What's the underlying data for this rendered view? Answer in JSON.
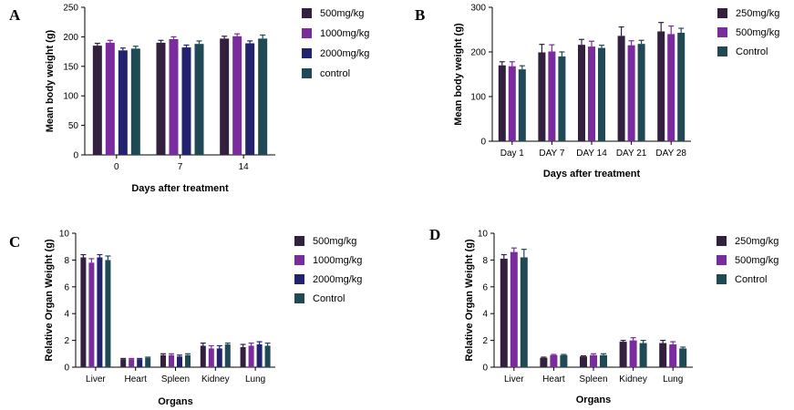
{
  "colors": {
    "dark_purple": "#33203f",
    "violet": "#7a2b9e",
    "navy": "#22226e",
    "teal": "#1f4a55"
  },
  "chart_data": [
    {
      "panel": "A",
      "type": "bar",
      "categories": [
        "0",
        "7",
        "14"
      ],
      "xlabel": "Days after treatment",
      "ylabel": "Mean body weight (g)",
      "ylim": [
        0,
        250
      ],
      "yticks": [
        0,
        50,
        100,
        150,
        200,
        250
      ],
      "legend_position": "right",
      "series": [
        {
          "name": "500mg/kg",
          "color": "#33203f",
          "values": [
            185,
            190,
            197
          ],
          "errors": [
            4,
            4,
            4
          ]
        },
        {
          "name": "1000mg/kg",
          "color": "#7a2b9e",
          "values": [
            190,
            196,
            201
          ],
          "errors": [
            4,
            4,
            4
          ]
        },
        {
          "name": "2000mg/kg",
          "color": "#22226e",
          "values": [
            177,
            182,
            189
          ],
          "errors": [
            4,
            4,
            4
          ]
        },
        {
          "name": "control",
          "color": "#1f4a55",
          "values": [
            180,
            188,
            197
          ],
          "errors": [
            4,
            5,
            6
          ]
        }
      ]
    },
    {
      "panel": "B",
      "type": "bar",
      "categories": [
        "Day 1",
        "DAY 7",
        "DAY 14",
        "DAY 21",
        "DAY 28"
      ],
      "xlabel": "Days after treatment",
      "ylabel": "Mean body weight (g)",
      "ylim": [
        0,
        300
      ],
      "yticks": [
        0,
        100,
        200,
        300
      ],
      "legend_position": "right",
      "series": [
        {
          "name": "250mg/kg",
          "color": "#33203f",
          "values": [
            170,
            199,
            216,
            236,
            246
          ],
          "errors": [
            8,
            18,
            12,
            20,
            20
          ]
        },
        {
          "name": "500mg/kg",
          "color": "#7a2b9e",
          "values": [
            168,
            201,
            212,
            215,
            240
          ],
          "errors": [
            10,
            15,
            12,
            10,
            18
          ]
        },
        {
          "name": "Control",
          "color": "#1f4a55",
          "values": [
            161,
            190,
            209,
            218,
            243
          ],
          "errors": [
            8,
            10,
            6,
            8,
            10
          ]
        }
      ]
    },
    {
      "panel": "C",
      "type": "bar",
      "categories": [
        "Liver",
        "Heart",
        "Spleen",
        "Kidney",
        "Lung"
      ],
      "xlabel": "Organs",
      "ylabel": "Relative Organ Weight (g)",
      "ylim": [
        0,
        10
      ],
      "yticks": [
        0,
        2,
        4,
        6,
        8,
        10
      ],
      "legend_position": "right",
      "series": [
        {
          "name": "500mg/kg",
          "color": "#33203f",
          "values": [
            8.2,
            0.6,
            0.9,
            1.6,
            1.5
          ],
          "errors": [
            0.2,
            0.05,
            0.1,
            0.2,
            0.2
          ]
        },
        {
          "name": "1000mg/kg",
          "color": "#7a2b9e",
          "values": [
            7.8,
            0.6,
            0.9,
            1.4,
            1.6
          ],
          "errors": [
            0.3,
            0.05,
            0.1,
            0.2,
            0.2
          ]
        },
        {
          "name": "2000mg/kg",
          "color": "#22226e",
          "values": [
            8.2,
            0.6,
            0.8,
            1.4,
            1.7
          ],
          "errors": [
            0.2,
            0.05,
            0.1,
            0.2,
            0.2
          ]
        },
        {
          "name": "Control",
          "color": "#1f4a55",
          "values": [
            8.0,
            0.7,
            0.9,
            1.7,
            1.6
          ],
          "errors": [
            0.3,
            0.05,
            0.1,
            0.1,
            0.2
          ]
        }
      ]
    },
    {
      "panel": "D",
      "type": "bar",
      "categories": [
        "Liver",
        "Heart",
        "Spleen",
        "Kidney",
        "Lung"
      ],
      "xlabel": "Organs",
      "ylabel": "Relative Organ Weight (g)",
      "ylim": [
        0,
        10
      ],
      "yticks": [
        0,
        2,
        4,
        6,
        8,
        10
      ],
      "legend_position": "right",
      "series": [
        {
          "name": "250mg/kg",
          "color": "#33203f",
          "values": [
            8.1,
            0.7,
            0.8,
            1.9,
            1.8
          ],
          "errors": [
            0.3,
            0.05,
            0.05,
            0.1,
            0.2
          ]
        },
        {
          "name": "500mg/kg",
          "color": "#7a2b9e",
          "values": [
            8.6,
            0.9,
            0.9,
            2.0,
            1.7
          ],
          "errors": [
            0.3,
            0.05,
            0.1,
            0.2,
            0.2
          ]
        },
        {
          "name": "Control",
          "color": "#1f4a55",
          "values": [
            8.2,
            0.9,
            0.9,
            1.8,
            1.4
          ],
          "errors": [
            0.6,
            0.05,
            0.1,
            0.2,
            0.1
          ]
        }
      ]
    }
  ]
}
